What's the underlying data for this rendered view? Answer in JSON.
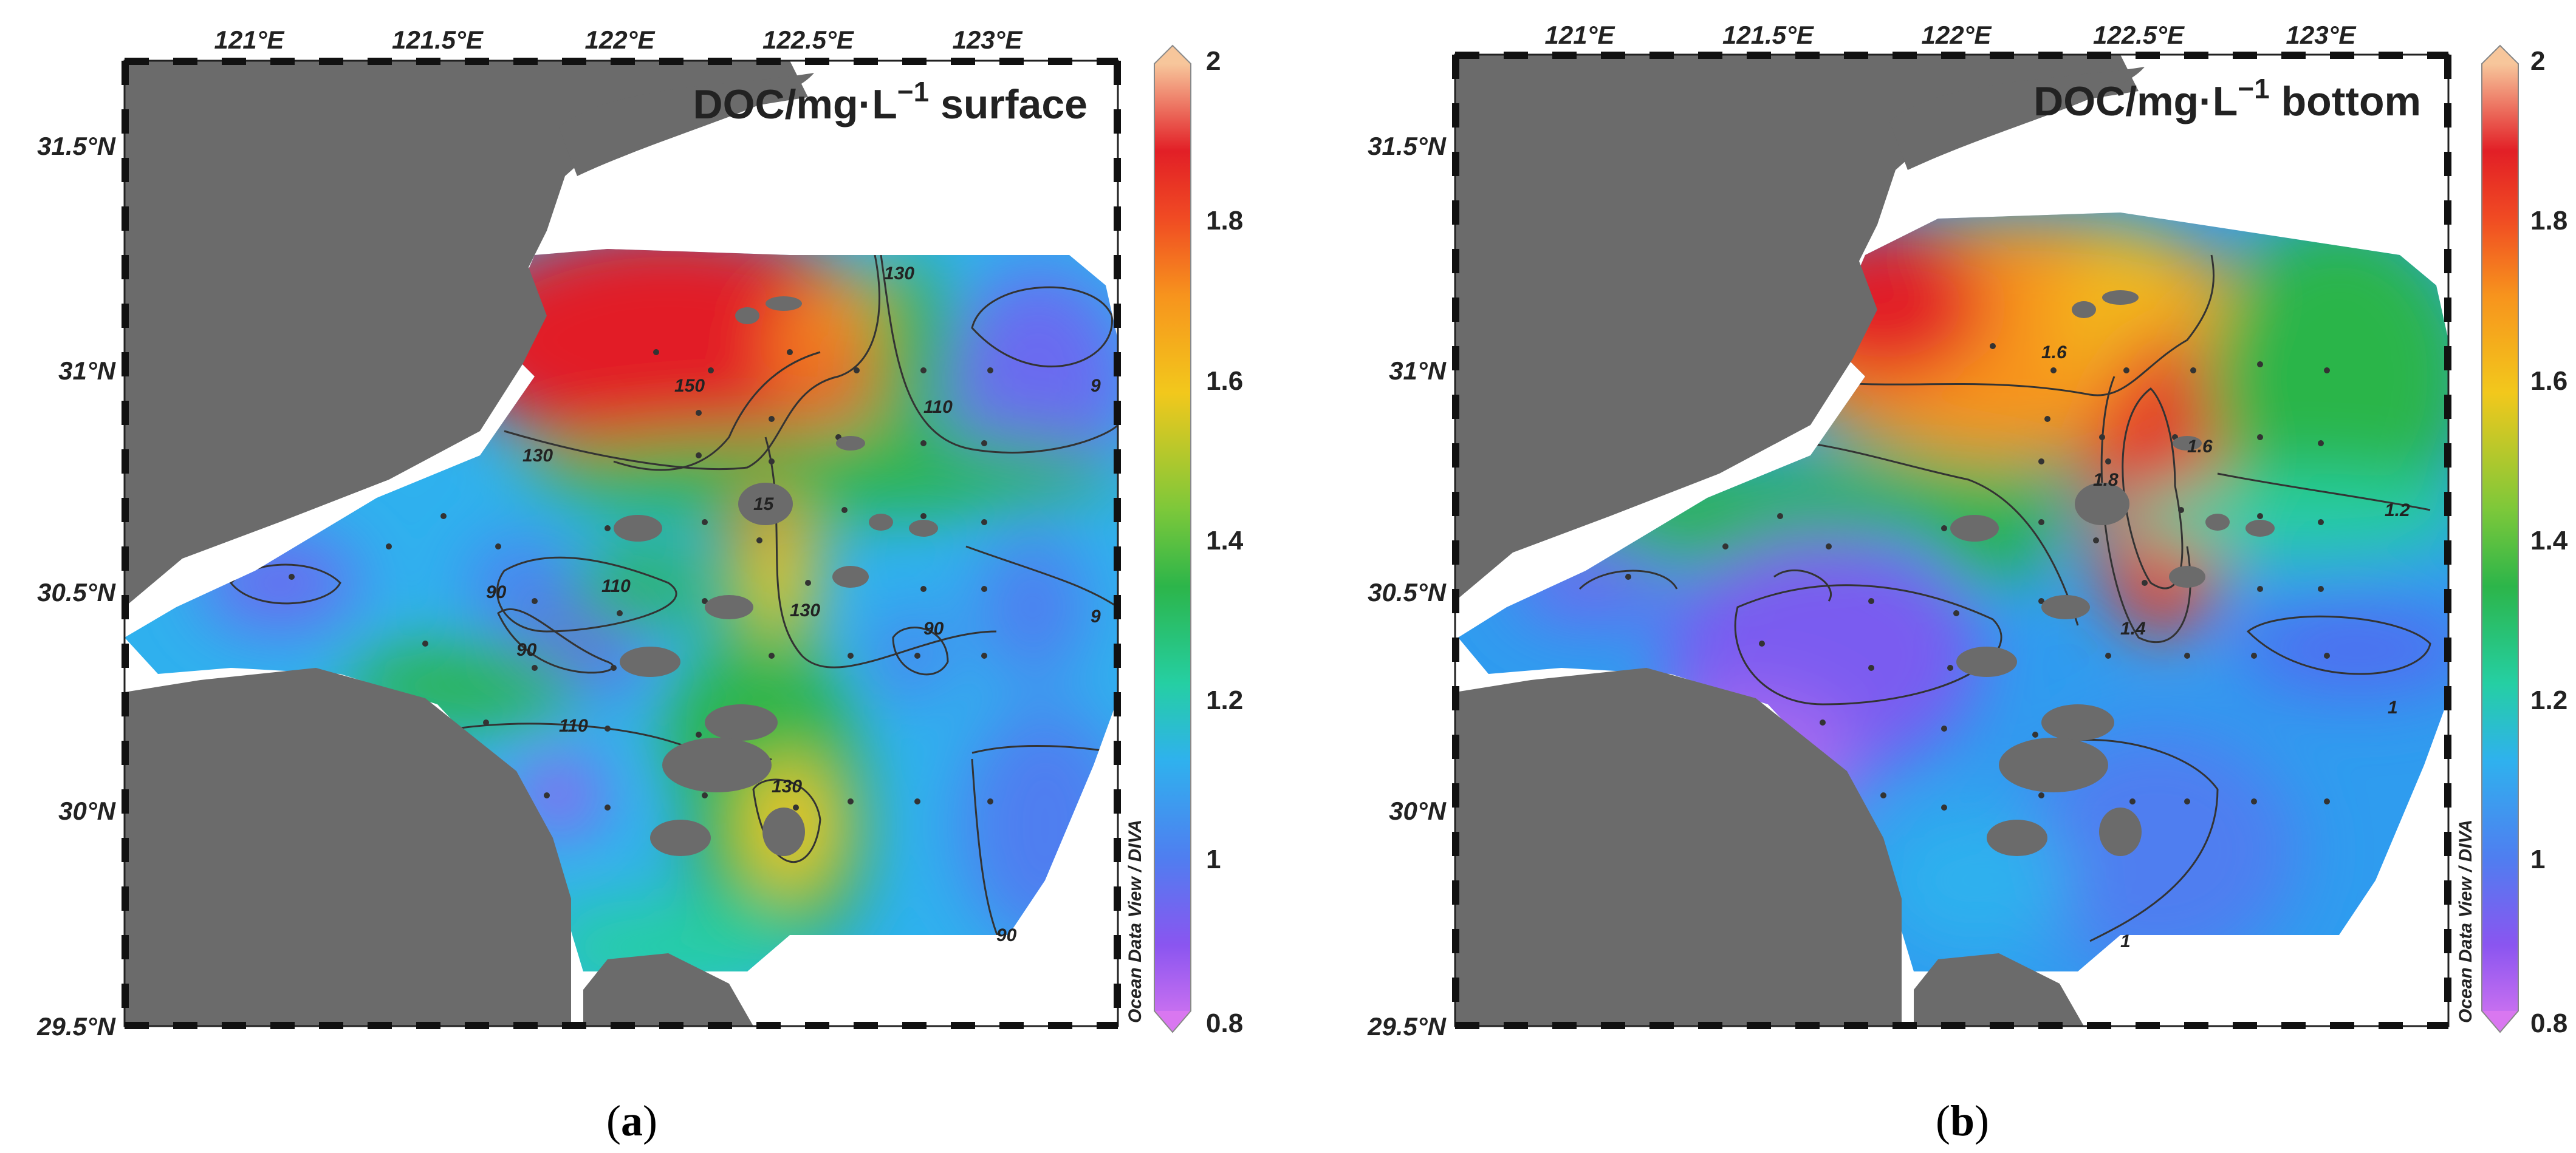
{
  "x_ticks": [
    "121°E",
    "121.5°E",
    "122°E",
    "122.5°E",
    "123°E"
  ],
  "y_ticks": [
    "31.5°N",
    "31°N",
    "30.5°N",
    "30°N",
    "29.5°N"
  ],
  "colorbar": {
    "ticks": [
      "2",
      "1.8",
      "1.6",
      "1.4",
      "1.2",
      "1",
      "0.8"
    ],
    "vmin": 0.8,
    "vmax": 2.0,
    "colors": [
      "#d977f0",
      "#8a55f0",
      "#4f7ef0",
      "#2fb1ee",
      "#25cfa3",
      "#2cb54a",
      "#7dc83a",
      "#f2c81c",
      "#f7941d",
      "#f04b23",
      "#e21f26",
      "#f7c69b"
    ],
    "side_label": "Ocean Data View / DIVA"
  },
  "panels": [
    {
      "title_main": "DOC/mg·L",
      "title_sup": "−1",
      "title_suffix": " surface",
      "sublabel_open": "(",
      "sublabel_letter": "a",
      "sublabel_close": ")",
      "contour_labels": [
        "130",
        "150",
        "110",
        "130",
        "15",
        "90",
        "110",
        "90",
        "130",
        "90",
        "110",
        "130",
        "90",
        "9",
        "9"
      ]
    },
    {
      "title_main": "DOC/mg·L",
      "title_sup": "−1",
      "title_suffix": " bottom",
      "sublabel_open": "(",
      "sublabel_letter": "b",
      "sublabel_close": ")",
      "contour_labels": [
        "1.6",
        "1.6",
        "1.8",
        "1.2",
        "1.4",
        "1",
        "1"
      ]
    }
  ]
}
